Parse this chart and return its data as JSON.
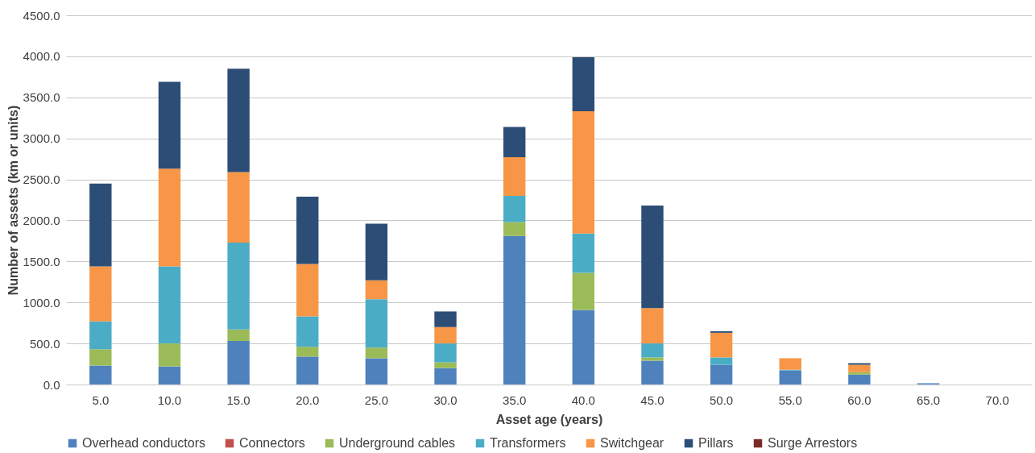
{
  "chart_data": {
    "type": "bar",
    "stacked": true,
    "xlabel": "Asset age (years)",
    "ylabel": "Number of assets (km or units)",
    "categories": [
      "5.0",
      "10.0",
      "15.0",
      "20.0",
      "25.0",
      "30.0",
      "35.0",
      "40.0",
      "45.0",
      "50.0",
      "55.0",
      "60.0",
      "65.0",
      "70.0"
    ],
    "series": [
      {
        "name": "Overhead conductors",
        "color": "#4f81bd",
        "values": [
          230,
          220,
          530,
          340,
          320,
          200,
          1810,
          910,
          290,
          240,
          170,
          120,
          15,
          0
        ]
      },
      {
        "name": "Connectors",
        "color": "#c0504d",
        "values": [
          0,
          0,
          0,
          0,
          0,
          0,
          0,
          0,
          0,
          0,
          0,
          0,
          0,
          0
        ]
      },
      {
        "name": "Underground cables",
        "color": "#9bbb59",
        "values": [
          200,
          280,
          140,
          120,
          130,
          70,
          170,
          450,
          40,
          0,
          0,
          30,
          0,
          0
        ]
      },
      {
        "name": "Transformers",
        "color": "#4bacc6",
        "values": [
          340,
          940,
          1060,
          370,
          590,
          230,
          320,
          480,
          170,
          90,
          10,
          0,
          0,
          0
        ]
      },
      {
        "name": "Switchgear",
        "color": "#f79646",
        "values": [
          670,
          1190,
          860,
          640,
          230,
          200,
          470,
          1490,
          430,
          300,
          140,
          90,
          0,
          0
        ]
      },
      {
        "name": "Pillars",
        "color": "#2c4d75",
        "values": [
          1010,
          1060,
          1260,
          820,
          690,
          190,
          370,
          660,
          1250,
          20,
          0,
          20,
          0,
          0
        ]
      },
      {
        "name": "Surge Arrestors",
        "color": "#772c2a",
        "values": [
          0,
          0,
          0,
          0,
          0,
          0,
          0,
          0,
          0,
          0,
          0,
          0,
          0,
          0
        ]
      }
    ],
    "ylim": [
      0,
      4500
    ],
    "yticks": [
      {
        "value": 0,
        "label": "0.0"
      },
      {
        "value": 500,
        "label": "500.0"
      },
      {
        "value": 1000,
        "label": "1000.0"
      },
      {
        "value": 1500,
        "label": "1500.0"
      },
      {
        "value": 2000,
        "label": "2000.0"
      },
      {
        "value": 2500,
        "label": "2500.0"
      },
      {
        "value": 3000,
        "label": "3000.0"
      },
      {
        "value": 3500,
        "label": "3500.0"
      },
      {
        "value": 4000,
        "label": "4000.0"
      },
      {
        "value": 4500,
        "label": "4500.0"
      }
    ],
    "grid": "y",
    "legend": "bottom"
  }
}
